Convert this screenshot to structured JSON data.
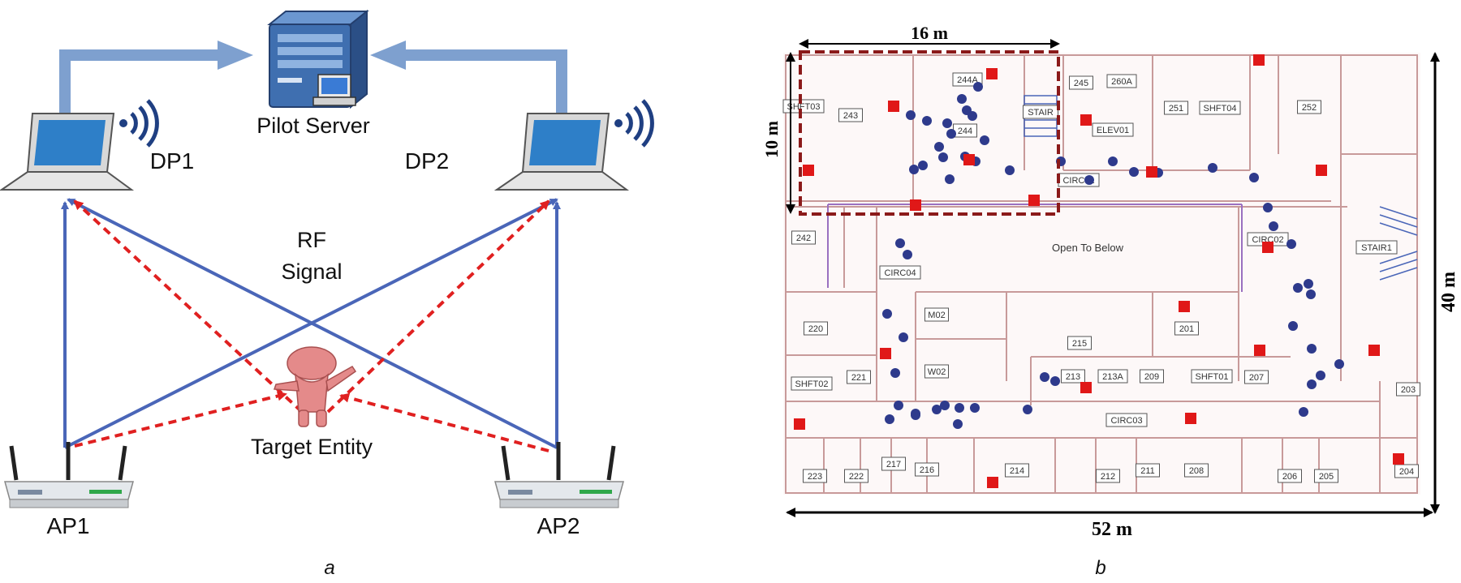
{
  "panel_a": {
    "server_label": "Pilot Server",
    "dp1_label": "DP1",
    "dp2_label": "DP2",
    "rf_signal_line1": "RF",
    "rf_signal_line2": "Signal",
    "target_label": "Target Entity",
    "ap1_label": "AP1",
    "ap2_label": "AP2",
    "caption": "a",
    "colors": {
      "solid_link": "#4a66b8",
      "dashed_link": "#e02020",
      "uplink": "#7ea0cf"
    }
  },
  "panel_b": {
    "dim_width_16": "16 m",
    "dim_height_10": "10 m",
    "dim_height_40": "40 m",
    "dim_width_52": "52 m",
    "open_to_below": "Open To Below",
    "caption": "b",
    "rooms": [
      "SHFT03",
      "243",
      "244A",
      "244",
      "245",
      "260A",
      "STAIR",
      "ELEV01",
      "251",
      "SHFT04",
      "252",
      "CIRC01",
      "242",
      "CIRC04",
      "CIRC02",
      "STAIR1",
      "220",
      "M02",
      "W02",
      "215",
      "201",
      "SHFT02",
      "221",
      "213",
      "213A",
      "209",
      "SHFT01",
      "207",
      "203",
      "CIRC03",
      "223",
      "222",
      "217",
      "216",
      "214",
      "212",
      "211",
      "208",
      "206",
      "205",
      "204"
    ],
    "colors": {
      "blue_dot": "#2e3a8c",
      "red_square": "#e01818",
      "roi_box": "#8b1a1a"
    }
  }
}
